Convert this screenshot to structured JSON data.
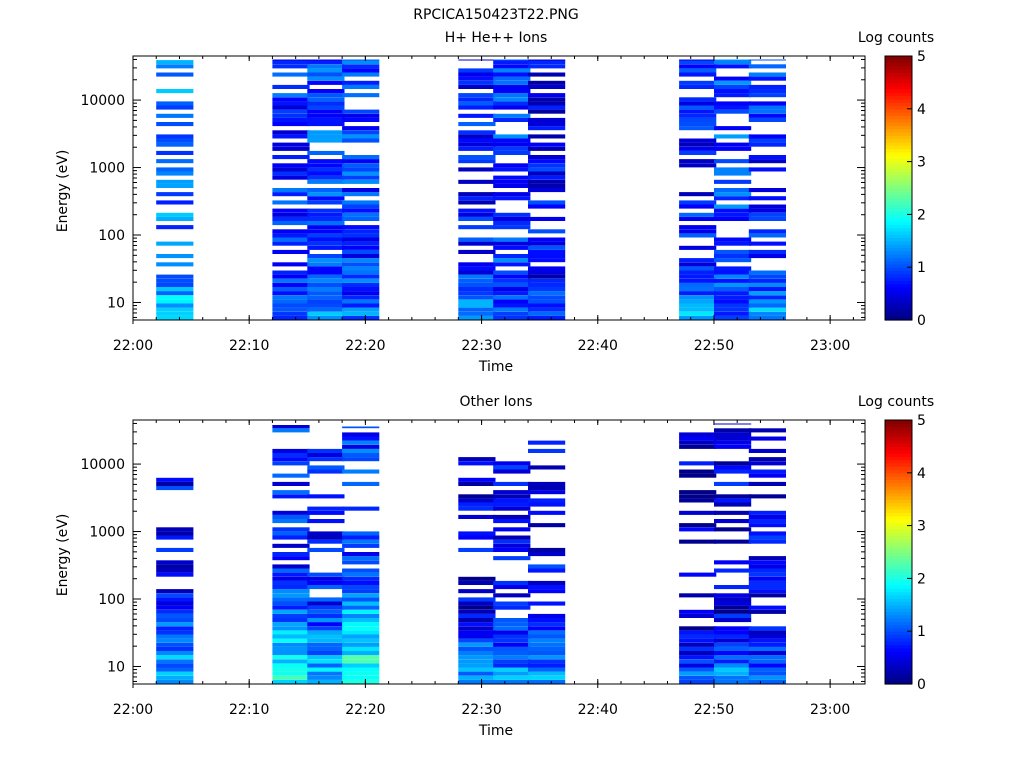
{
  "figure_title": "RPCICA150423T22.PNG",
  "colors": {
    "jet": [
      "#00007f",
      "#0000ff",
      "#007fff",
      "#00ffff",
      "#7fff7f",
      "#ffff00",
      "#ff7f00",
      "#ff0000",
      "#7f0000"
    ]
  },
  "colorbar": {
    "label": "Log counts",
    "ticks": [
      "0",
      "1",
      "2",
      "3",
      "4",
      "5"
    ],
    "range": [
      0,
      5
    ]
  },
  "chart_data": [
    {
      "type": "heatmap",
      "title": "H+ He++ Ions",
      "xlabel": "Time",
      "ylabel": "Energy (eV)",
      "x_ticks": [
        "22:00",
        "22:10",
        "22:20",
        "22:30",
        "22:40",
        "22:50",
        "23:00"
      ],
      "y_ticks": [
        "10",
        "100",
        "1000",
        "10000"
      ],
      "y_scale": "log",
      "ylim": [
        5.5,
        45000
      ],
      "xlim": [
        "22:00",
        "23:03"
      ],
      "color_scale": "Log counts",
      "columns": [
        {
          "x": "22:02",
          "base": 1.2,
          "lowBoost": 1.7,
          "lowEdge": 25,
          "gapRate": 0.4,
          "seed": 11
        },
        {
          "x": "22:12",
          "base": 0.8,
          "lowBoost": 0.5,
          "lowEdge": 30,
          "gapRate": 0.3,
          "seed": 23
        },
        {
          "x": "22:15",
          "base": 1.0,
          "lowBoost": 1.2,
          "lowEdge": 30,
          "gapRate": 0.3,
          "seed": 37
        },
        {
          "x": "22:18",
          "base": 0.9,
          "lowBoost": 0.4,
          "lowEdge": 30,
          "gapRate": 0.3,
          "seed": 41
        },
        {
          "x": "22:28",
          "base": 0.7,
          "lowBoost": 1.8,
          "lowEdge": 40,
          "gapRate": 0.3,
          "seed": 53
        },
        {
          "x": "22:31",
          "base": 0.9,
          "lowBoost": 0.4,
          "lowEdge": 30,
          "gapRate": 0.25,
          "seed": 67
        },
        {
          "x": "22:34",
          "base": 0.6,
          "lowBoost": 0.8,
          "lowEdge": 30,
          "gapRate": 0.25,
          "seed": 71
        },
        {
          "x": "22:47",
          "base": 0.7,
          "lowBoost": 1.9,
          "lowEdge": 30,
          "gapRate": 0.35,
          "seed": 83
        },
        {
          "x": "22:50",
          "base": 1.0,
          "lowBoost": 0.3,
          "lowEdge": 30,
          "gapRate": 0.3,
          "seed": 97
        },
        {
          "x": "22:53",
          "base": 0.8,
          "lowBoost": 1.3,
          "lowEdge": 30,
          "gapRate": 0.3,
          "seed": 101
        }
      ]
    },
    {
      "type": "heatmap",
      "title": "Other Ions",
      "xlabel": "Time",
      "ylabel": "Energy (eV)",
      "x_ticks": [
        "22:00",
        "22:10",
        "22:20",
        "22:30",
        "22:40",
        "22:50",
        "23:00"
      ],
      "y_ticks": [
        "10",
        "100",
        "1000",
        "10000"
      ],
      "y_scale": "log",
      "ylim": [
        5.5,
        45000
      ],
      "xlim": [
        "22:00",
        "23:03"
      ],
      "color_scale": "Log counts",
      "columns": [
        {
          "x": "22:02",
          "base": 0.6,
          "lowBoost": 1.5,
          "lowEdge": 150,
          "gapRate": 0.7,
          "seed": 13,
          "top": 11000
        },
        {
          "x": "22:12",
          "base": 0.8,
          "lowBoost": 1.6,
          "lowEdge": 300,
          "gapRate": 0.45,
          "seed": 29,
          "top": 38000
        },
        {
          "x": "22:15",
          "base": 0.7,
          "lowBoost": 1.7,
          "lowEdge": 100,
          "gapRate": 0.5,
          "seed": 31,
          "top": 22000
        },
        {
          "x": "22:18",
          "base": 0.9,
          "lowBoost": 2.0,
          "lowEdge": 300,
          "gapRate": 0.4,
          "seed": 43,
          "top": 36000
        },
        {
          "x": "22:28",
          "base": 0.5,
          "lowBoost": 1.6,
          "lowEdge": 80,
          "gapRate": 0.55,
          "seed": 59,
          "top": 13000
        },
        {
          "x": "22:31",
          "base": 0.6,
          "lowBoost": 1.5,
          "lowEdge": 60,
          "gapRate": 0.5,
          "seed": 61,
          "top": 11000
        },
        {
          "x": "22:34",
          "base": 0.6,
          "lowBoost": 1.4,
          "lowEdge": 60,
          "gapRate": 0.55,
          "seed": 73,
          "top": 25000
        },
        {
          "x": "22:47",
          "base": 0.4,
          "lowBoost": 1.5,
          "lowEdge": 40,
          "gapRate": 0.55,
          "seed": 79,
          "top": 30000
        },
        {
          "x": "22:50",
          "base": 0.5,
          "lowBoost": 1.8,
          "lowEdge": 40,
          "gapRate": 0.5,
          "seed": 89,
          "top": 40000
        },
        {
          "x": "22:53",
          "base": 0.5,
          "lowBoost": 1.6,
          "lowEdge": 40,
          "gapRate": 0.55,
          "seed": 103,
          "top": 38000
        }
      ]
    }
  ]
}
